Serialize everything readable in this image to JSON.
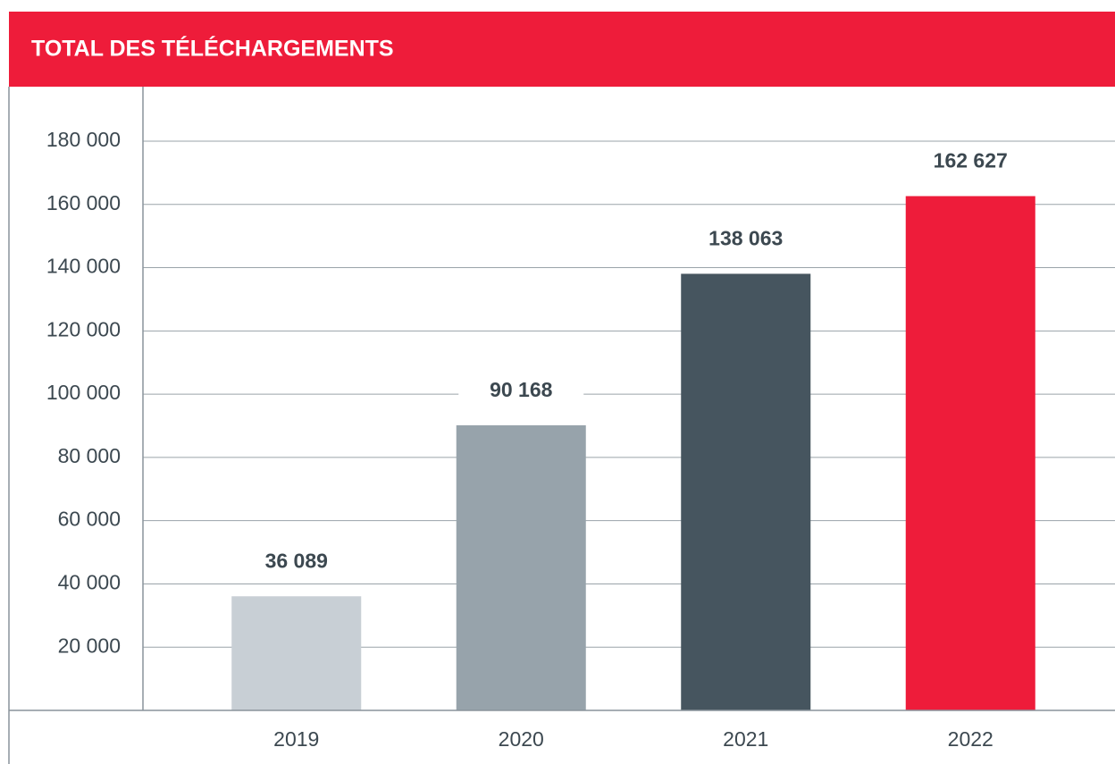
{
  "chart_data": {
    "type": "bar",
    "title": "TOTAL DES TÉLÉCHARGEMENTS",
    "categories": [
      "2019",
      "2020",
      "2021",
      "2022"
    ],
    "values": [
      36089,
      90168,
      138063,
      162627
    ],
    "value_labels": [
      "36 089",
      "90 168",
      "138 063",
      "162 627"
    ],
    "colors": [
      "#c8cfd5",
      "#97a3ab",
      "#46555f",
      "#ee1c3a"
    ],
    "ylim": [
      0,
      180000
    ],
    "yticks": [
      {
        "value": 20000,
        "label": "20 000"
      },
      {
        "value": 40000,
        "label": "40 000"
      },
      {
        "value": 60000,
        "label": "60 000"
      },
      {
        "value": 80000,
        "label": "80 000"
      },
      {
        "value": 100000,
        "label": "100 000"
      },
      {
        "value": 120000,
        "label": "120 000"
      },
      {
        "value": 140000,
        "label": "140 000"
      },
      {
        "value": 160000,
        "label": "160 000"
      },
      {
        "value": 180000,
        "label": "180 000"
      }
    ],
    "grid": true
  }
}
